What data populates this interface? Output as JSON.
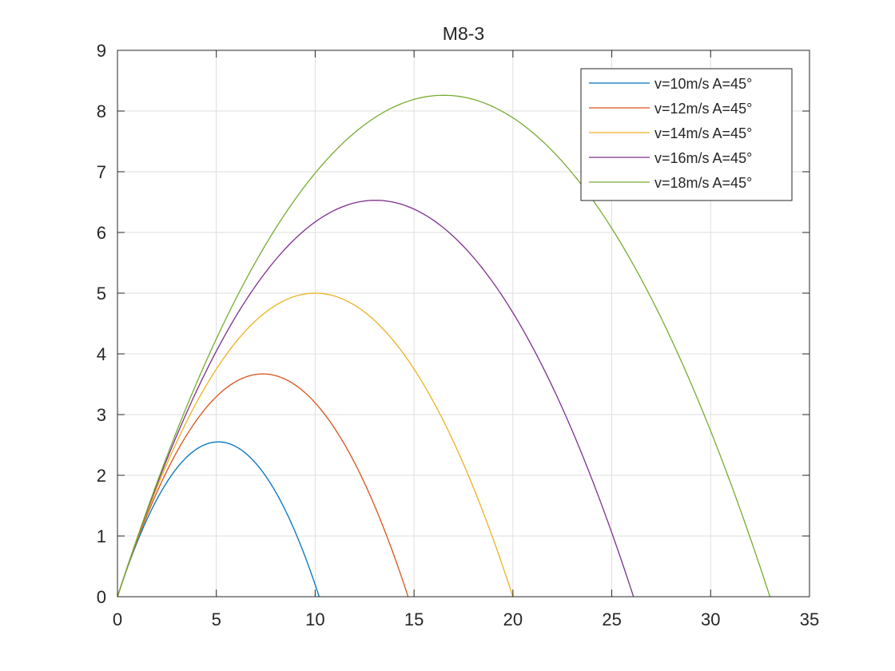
{
  "chart_data": {
    "type": "line",
    "title": "M8-3",
    "xlabel": "",
    "ylabel": "",
    "xlim": [
      0,
      35
    ],
    "ylim": [
      0,
      9
    ],
    "xticks": [
      "0",
      "5",
      "10",
      "15",
      "20",
      "25",
      "30",
      "35"
    ],
    "yticks": [
      "0",
      "1",
      "2",
      "3",
      "4",
      "5",
      "6",
      "7",
      "8",
      "9"
    ],
    "grid": true,
    "legend_position": "top-right",
    "series": [
      {
        "name": "v=10m/s A=45°",
        "color": "#0072BD",
        "speed": 10,
        "angle_deg": 45
      },
      {
        "name": "v=12m/s A=45°",
        "color": "#D95319",
        "speed": 12,
        "angle_deg": 45
      },
      {
        "name": "v=14m/s A=45°",
        "color": "#EDB120",
        "speed": 14,
        "angle_deg": 45
      },
      {
        "name": "v=16m/s A=45°",
        "color": "#7E2F8E",
        "speed": 16,
        "angle_deg": 45
      },
      {
        "name": "v=18m/s A=45°",
        "color": "#77AC30",
        "speed": 18,
        "angle_deg": 45
      }
    ],
    "range_m": [
      10.2,
      14.7,
      20.0,
      26.1,
      33.0
    ],
    "peak_height_m": [
      2.55,
      3.67,
      5.0,
      6.53,
      8.26
    ]
  }
}
